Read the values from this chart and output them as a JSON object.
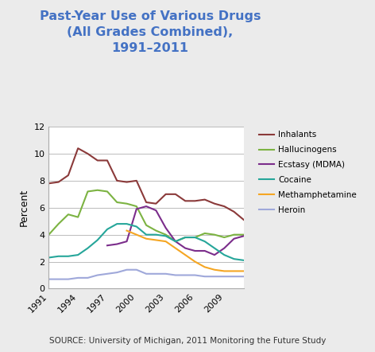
{
  "title": "Past-Year Use of Various Drugs\n(All Grades Combined),\n1991–2011",
  "ylabel": "Percent",
  "source": "SOURCE: University of Michigan, 2011 Monitoring the Future Study",
  "years": [
    1991,
    1992,
    1993,
    1994,
    1995,
    1996,
    1997,
    1998,
    1999,
    2000,
    2001,
    2002,
    2003,
    2004,
    2005,
    2006,
    2007,
    2008,
    2009,
    2010,
    2011
  ],
  "series": {
    "Inhalants": {
      "values": [
        7.8,
        7.9,
        8.4,
        10.4,
        10.0,
        9.5,
        9.5,
        8.0,
        7.9,
        8.0,
        6.4,
        6.3,
        7.0,
        7.0,
        6.5,
        6.5,
        6.6,
        6.3,
        6.1,
        5.7,
        5.1
      ],
      "color": "#8B3A3A"
    },
    "Hallucinogens": {
      "values": [
        4.0,
        4.8,
        5.5,
        5.3,
        7.2,
        7.3,
        7.2,
        6.4,
        6.3,
        6.1,
        4.7,
        4.3,
        4.0,
        3.5,
        3.8,
        3.8,
        4.1,
        4.0,
        3.8,
        4.0,
        4.0
      ],
      "color": "#7CB342"
    },
    "Ecstasy (MDMA)": {
      "values": [
        null,
        null,
        null,
        null,
        null,
        null,
        3.2,
        3.3,
        3.5,
        5.9,
        6.1,
        5.8,
        4.5,
        3.5,
        3.0,
        2.8,
        2.8,
        2.5,
        3.0,
        3.7,
        3.9
      ],
      "color": "#7B2D8B"
    },
    "Cocaine": {
      "values": [
        2.3,
        2.4,
        2.4,
        2.5,
        3.0,
        3.6,
        4.4,
        4.8,
        4.8,
        4.6,
        4.0,
        4.0,
        3.9,
        3.5,
        3.8,
        3.8,
        3.5,
        3.0,
        2.5,
        2.2,
        2.1
      ],
      "color": "#26A69A"
    },
    "Methamphetamine": {
      "values": [
        null,
        null,
        null,
        null,
        null,
        null,
        null,
        null,
        4.3,
        4.0,
        3.7,
        3.6,
        3.5,
        3.0,
        2.5,
        2.0,
        1.6,
        1.4,
        1.3,
        1.3,
        1.3
      ],
      "color": "#F5A623"
    },
    "Heroin": {
      "values": [
        0.7,
        0.7,
        0.7,
        0.8,
        0.8,
        1.0,
        1.1,
        1.2,
        1.4,
        1.4,
        1.1,
        1.1,
        1.1,
        1.0,
        1.0,
        1.0,
        0.9,
        0.9,
        0.9,
        0.9,
        0.9
      ],
      "color": "#9FA8DA"
    }
  },
  "ylim": [
    0,
    12
  ],
  "yticks": [
    0,
    2,
    4,
    6,
    8,
    10,
    12
  ],
  "xticks": [
    1991,
    1994,
    1997,
    2000,
    2003,
    2006,
    2009
  ],
  "bg_color": "#EBEBEB",
  "plot_bg_color": "#FFFFFF",
  "title_color": "#4472C4",
  "title_fontsize": 11.5,
  "axis_label_fontsize": 9,
  "tick_fontsize": 8,
  "legend_fontsize": 7.5,
  "source_fontsize": 7.5
}
